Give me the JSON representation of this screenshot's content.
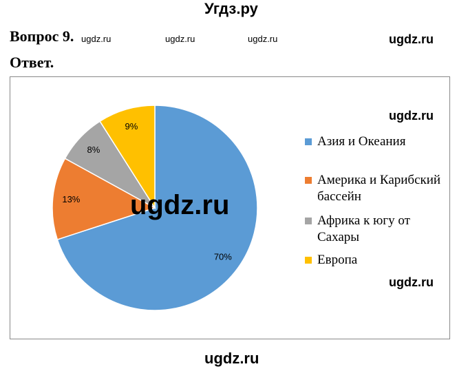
{
  "header": {
    "title": "Угдз.ру"
  },
  "question": "Вопрос 9.",
  "answer": "Ответ.",
  "watermarks": [
    "ugdz.ru",
    "ugdz.ru",
    "ugdz.ru",
    "ugdz.ru",
    "ugdz.ru",
    "ugdz.ru",
    "ugdz.ru",
    "ugdz.ru"
  ],
  "chart_data": {
    "type": "pie",
    "categories": [
      "Азия и Океания",
      "Америка и Карибский бассейн",
      "Африка к югу от Сахары",
      "Европа"
    ],
    "values": [
      70,
      13,
      8,
      9
    ],
    "value_labels": [
      "70%",
      "13%",
      "8%",
      "9%"
    ],
    "colors": [
      "#5b9bd5",
      "#ed7d31",
      "#a5a5a5",
      "#ffc000"
    ],
    "legend": "right"
  }
}
